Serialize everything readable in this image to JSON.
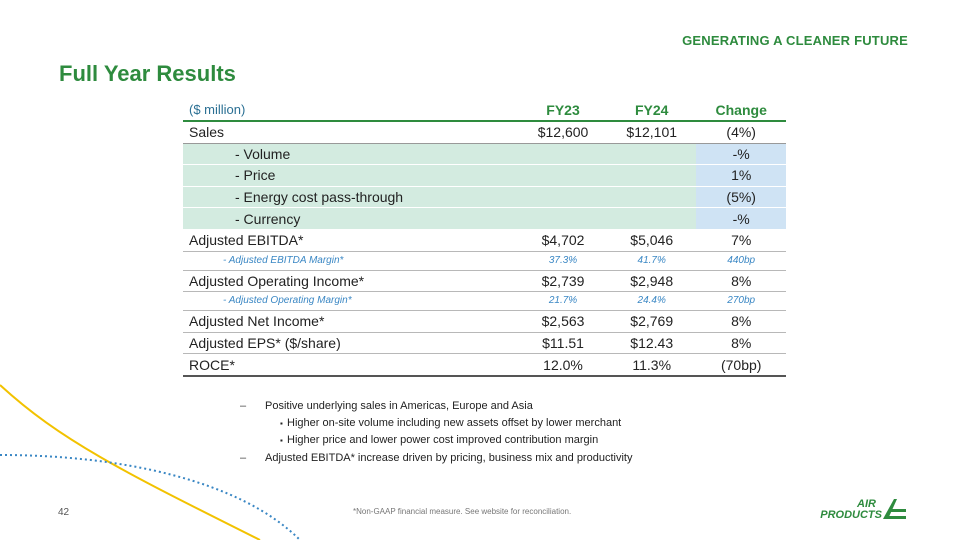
{
  "header": {
    "tagline": "GENERATING A CLEANER FUTURE",
    "title": "Full Year Results"
  },
  "table": {
    "units_label": "($ million)",
    "columns": [
      "FY23",
      "FY24",
      "Change"
    ],
    "rows": [
      {
        "label": "Sales",
        "fy23": "$12,600",
        "fy24": "$12,101",
        "change": "(4%)"
      },
      {
        "label": "- Volume",
        "fy23": "",
        "fy24": "",
        "change": "-%"
      },
      {
        "label": "- Price",
        "fy23": "",
        "fy24": "",
        "change": "1%"
      },
      {
        "label": "- Energy cost pass-through",
        "fy23": "",
        "fy24": "",
        "change": "(5%)"
      },
      {
        "label": "- Currency",
        "fy23": "",
        "fy24": "",
        "change": "-%"
      },
      {
        "label": "Adjusted EBITDA*",
        "fy23": "$4,702",
        "fy24": "$5,046",
        "change": "7%"
      },
      {
        "label": "- Adjusted EBITDA Margin*",
        "fy23": "37.3%",
        "fy24": "41.7%",
        "change": "440bp"
      },
      {
        "label": "Adjusted Operating Income*",
        "fy23": "$2,739",
        "fy24": "$2,948",
        "change": "8%"
      },
      {
        "label": "- Adjusted Operating Margin*",
        "fy23": "21.7%",
        "fy24": "24.4%",
        "change": "270bp"
      },
      {
        "label": "Adjusted Net Income*",
        "fy23": "$2,563",
        "fy24": "$2,769",
        "change": "8%"
      },
      {
        "label": "Adjusted EPS* ($/share)",
        "fy23": "$11.51",
        "fy24": "$12.43",
        "change": "8%"
      },
      {
        "label": "ROCE*",
        "fy23": "12.0%",
        "fy24": "11.3%",
        "change": "(70bp)"
      }
    ]
  },
  "notes": {
    "dash": "–",
    "bullet": "▪",
    "items": [
      {
        "text": "Positive underlying sales in Americas, Europe and Asia",
        "subs": [
          "Higher on-site volume including new assets offset by lower merchant",
          "Higher price and lower power cost improved contribution margin"
        ]
      },
      {
        "text": "Adjusted EBITDA* increase driven by pricing, business mix and productivity",
        "subs": []
      }
    ]
  },
  "footnote": "*Non-GAAP financial measure.  See website for reconciliation.",
  "page_number": "42",
  "logo": {
    "line1": "AIR",
    "line2": "PRODUCTS"
  },
  "colors": {
    "brand_green": "#2e8b3e",
    "margin_blue": "#3a87c4",
    "teal_shade": "#d3ebe0",
    "blue_shade": "#cfe3f4",
    "deco_yellow": "#f2c200",
    "deco_blue": "#3a87c4"
  }
}
